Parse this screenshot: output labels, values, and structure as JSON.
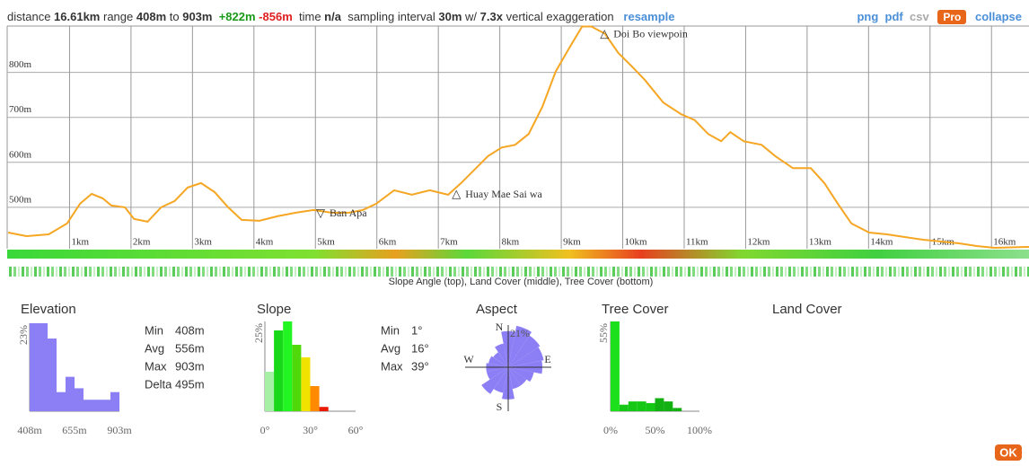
{
  "toolbar": {
    "distance_label": "distance",
    "distance": "16.61km",
    "range_label": "range",
    "range_min": "408m",
    "range_to": "to",
    "range_max": "903m",
    "gain": "+822m",
    "loss": "-856m",
    "time_label": "time",
    "time": "n/a",
    "interval_label": "sampling interval",
    "interval": "30m",
    "interval_with": "w/",
    "exaggeration": "7.3x",
    "exaggeration_label": "vertical exaggeration",
    "resample": "resample",
    "png": "png",
    "pdf": "pdf",
    "csv": "csv",
    "pro": "Pro",
    "collapse": "collapse"
  },
  "profile": {
    "type": "line",
    "color": "#f5a623",
    "xlim": [
      0,
      16.61
    ],
    "ylim": [
      408,
      903
    ],
    "xticks": [
      {
        "value": 1,
        "label": "1km"
      },
      {
        "value": 2,
        "label": "2km"
      },
      {
        "value": 3,
        "label": "3km"
      },
      {
        "value": 4,
        "label": "4km"
      },
      {
        "value": 5,
        "label": "5km"
      },
      {
        "value": 6,
        "label": "6km"
      },
      {
        "value": 7,
        "label": "7km"
      },
      {
        "value": 8,
        "label": "8km"
      },
      {
        "value": 9,
        "label": "9km"
      },
      {
        "value": 10,
        "label": "10km"
      },
      {
        "value": 11,
        "label": "11km"
      },
      {
        "value": 12,
        "label": "12km"
      },
      {
        "value": 13,
        "label": "13km"
      },
      {
        "value": 14,
        "label": "14km"
      },
      {
        "value": 15,
        "label": "15km"
      },
      {
        "value": 16,
        "label": "16km"
      }
    ],
    "yticks": [
      {
        "value": 500,
        "label": "500m"
      },
      {
        "value": 600,
        "label": "600m"
      },
      {
        "value": 700,
        "label": "700m"
      },
      {
        "value": 800,
        "label": "800m"
      }
    ],
    "x": [
      0,
      0.3,
      0.66,
      0.96,
      1.17,
      1.36,
      1.54,
      1.68,
      1.9,
      2.05,
      2.27,
      2.49,
      2.71,
      2.92,
      3.14,
      3.36,
      3.58,
      3.8,
      4.09,
      4.38,
      4.68,
      4.97,
      5.26,
      5.55,
      5.77,
      5.99,
      6.28,
      6.57,
      6.86,
      7.16,
      7.37,
      7.59,
      7.81,
      8.03,
      8.25,
      8.47,
      8.69,
      8.91,
      9.12,
      9.34,
      9.49,
      9.71,
      9.93,
      10.15,
      10.36,
      10.66,
      10.95,
      11.17,
      11.39,
      11.6,
      11.75,
      11.97,
      12.26,
      12.48,
      12.77,
      13.06,
      13.28,
      13.5,
      13.72,
      14.01,
      14.3,
      14.59,
      14.89,
      15.18,
      15.47,
      15.76,
      16.05,
      16.61
    ],
    "values": [
      444,
      436,
      440,
      464,
      508,
      530,
      520,
      504,
      500,
      474,
      468,
      500,
      514,
      544,
      554,
      534,
      500,
      472,
      470,
      480,
      488,
      494,
      488,
      488,
      494,
      508,
      538,
      528,
      538,
      528,
      554,
      584,
      614,
      633,
      639,
      663,
      723,
      802,
      852,
      902,
      902,
      886,
      843,
      813,
      783,
      733,
      707,
      694,
      663,
      647,
      667,
      647,
      639,
      614,
      587,
      587,
      554,
      508,
      464,
      444,
      440,
      434,
      428,
      424,
      420,
      414,
      410,
      412
    ],
    "markers": [
      {
        "x": 5.01,
        "symbol": "▽",
        "label": "Ban Apa"
      },
      {
        "x": 7.22,
        "symbol": "△",
        "label": "Huay Mae Sai wa"
      },
      {
        "x": 9.63,
        "symbol": "△",
        "label": "Doi Bo viewpoin"
      }
    ]
  },
  "strips_caption": "Slope Angle (top), Land Cover (middle), Tree Cover (bottom)",
  "panels": {
    "elevation": {
      "title": "Elevation",
      "color": "#8c7ef5",
      "xlim": [
        408,
        903
      ],
      "ylim": [
        0,
        23
      ],
      "yticks": [
        {
          "value": 23,
          "label": "23%"
        }
      ],
      "xticks": [
        {
          "value": 408,
          "label": "408m"
        },
        {
          "value": 655,
          "label": "655m"
        },
        {
          "value": 903,
          "label": "903m"
        }
      ],
      "bins": [
        408,
        457.5,
        507,
        556.5,
        606,
        655.5,
        705,
        754.5,
        804,
        853.5,
        903
      ],
      "values": [
        23,
        23,
        19,
        5,
        9,
        6,
        3,
        3,
        3,
        5
      ],
      "stats": [
        {
          "label": "Min",
          "value": "408m"
        },
        {
          "label": "Avg",
          "value": "556m"
        },
        {
          "label": "Max",
          "value": "903m"
        },
        {
          "label": "Delta",
          "value": "495m"
        }
      ]
    },
    "slope": {
      "title": "Slope",
      "xlim": [
        0,
        60
      ],
      "ylim": [
        0,
        25
      ],
      "yticks": [
        {
          "value": 25,
          "label": "25%"
        }
      ],
      "xticks": [
        {
          "value": 0,
          "label": "0°"
        },
        {
          "value": 30,
          "label": "30°"
        },
        {
          "value": 60,
          "label": "60°"
        }
      ],
      "bins": [
        0,
        6,
        12,
        18,
        24,
        30,
        36,
        42
      ],
      "values": [
        11,
        22.5,
        25,
        18.5,
        15,
        7,
        1.2
      ],
      "colors": [
        "#a6f0a6",
        "#19d819",
        "#22f522",
        "#4fd80a",
        "#f2e200",
        "#ff8a00",
        "#e81a00"
      ],
      "stats": [
        {
          "label": "Min",
          "value": "1°"
        },
        {
          "label": "Avg",
          "value": "16°"
        },
        {
          "label": "Max",
          "value": "39°"
        }
      ]
    },
    "aspect": {
      "title": "Aspect",
      "color": "#8c7ef5",
      "rlim": [
        0,
        21
      ],
      "rticks": [
        {
          "value": 21,
          "label": "21%"
        }
      ],
      "compass": [
        "N",
        "E",
        "S",
        "W"
      ],
      "values": [
        18,
        21,
        19,
        18,
        17,
        13,
        11,
        11,
        16,
        13,
        16,
        11,
        11,
        10,
        9,
        12
      ]
    },
    "tree_cover": {
      "title": "Tree Cover",
      "xlim": [
        0,
        100
      ],
      "ylim": [
        0,
        55
      ],
      "yticks": [
        {
          "value": 55,
          "label": "55%"
        }
      ],
      "xticks": [
        {
          "value": 0,
          "label": "0%"
        },
        {
          "value": 50,
          "label": "50%"
        },
        {
          "value": 100,
          "label": "100%"
        }
      ],
      "bins": [
        0,
        10,
        20,
        30,
        40,
        50,
        60,
        70,
        80,
        90,
        100
      ],
      "values": [
        55,
        4,
        6,
        6,
        5,
        8,
        6,
        2,
        0,
        0
      ],
      "colors": [
        "#1be01b",
        "#16c816",
        "#16c816",
        "#16c816",
        "#16c816",
        "#13b013",
        "#13b013",
        "#13b013",
        "#13b013",
        "#13b013"
      ]
    },
    "land_cover": {
      "title": "Land Cover"
    }
  },
  "ok_button": "OK"
}
